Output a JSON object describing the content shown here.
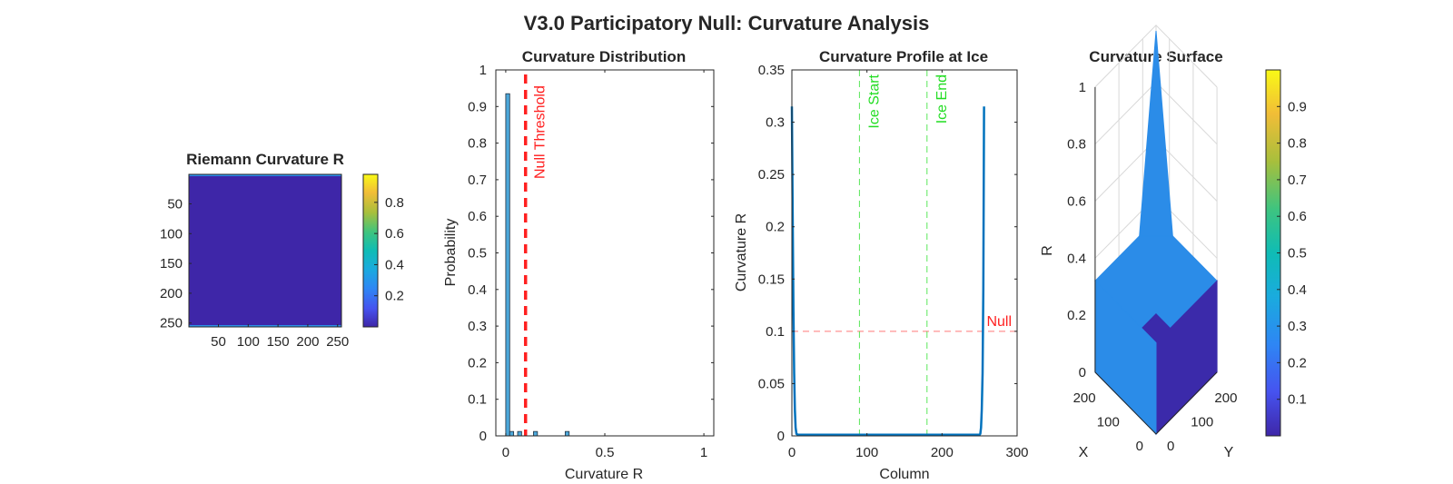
{
  "figure": {
    "title": "V3.0 Participatory Null: Curvature Analysis"
  },
  "colors": {
    "heatmap_fill": "#3e26a8",
    "heatmap_edge": "#2c8fe8",
    "bar_fill": "#4da8da",
    "line": "#0072bd",
    "threshold": "#ff2020",
    "ice": "#22dd22",
    "surface_high": "#2b8ce8",
    "surface_low": "#3b2aaa"
  },
  "chart_data": [
    {
      "type": "heatmap",
      "title": "Riemann Curvature R",
      "x_ticks": [
        "50",
        "100",
        "150",
        "200",
        "250"
      ],
      "y_ticks": [
        "50",
        "100",
        "150",
        "200",
        "250"
      ],
      "xlim": [
        0.5,
        256.5
      ],
      "ylim": [
        0.5,
        256.5
      ],
      "colorbar": {
        "ticks": [
          "0.2",
          "0.4",
          "0.6",
          "0.8"
        ],
        "values": [
          0.2,
          0.4,
          0.6,
          0.8
        ],
        "range": [
          0,
          0.98
        ]
      }
    },
    {
      "type": "bar",
      "title": "Curvature Distribution",
      "xlabel": "Curvature R",
      "ylabel": "Probability",
      "xlim": [
        -0.05,
        1.05
      ],
      "ylim": [
        0,
        1
      ],
      "x_ticks": [
        0,
        0.5,
        1
      ],
      "x_tick_labels": [
        "0",
        "0.5",
        "1"
      ],
      "y_ticks": [
        0,
        0.1,
        0.2,
        0.3,
        0.4,
        0.5,
        0.6,
        0.7,
        0.8,
        0.9,
        1
      ],
      "y_tick_labels": [
        "0",
        "0.1",
        "0.2",
        "0.3",
        "0.4",
        "0.5",
        "0.6",
        "0.7",
        "0.8",
        "0.9",
        "1"
      ],
      "bar_width": 0.02,
      "bars": [
        {
          "x": 0.01,
          "value": 0.935
        },
        {
          "x": 0.03,
          "value": 0.012
        },
        {
          "x": 0.07,
          "value": 0.012
        },
        {
          "x": 0.15,
          "value": 0.012
        },
        {
          "x": 0.31,
          "value": 0.012
        }
      ],
      "threshold": {
        "x": 0.1,
        "label": "Null Threshold"
      }
    },
    {
      "type": "line",
      "title": "Curvature Profile at Ice",
      "xlabel": "Column",
      "ylabel": "Curvature R",
      "xlim": [
        0,
        300
      ],
      "ylim": [
        0,
        0.35
      ],
      "x_ticks": [
        0,
        100,
        200,
        300
      ],
      "x_tick_labels": [
        "0",
        "100",
        "200",
        "300"
      ],
      "y_ticks": [
        0,
        0.05,
        0.1,
        0.15,
        0.2,
        0.25,
        0.3,
        0.35
      ],
      "y_tick_labels": [
        "0",
        "0.05",
        "0.1",
        "0.15",
        "0.2",
        "0.25",
        "0.3",
        "0.35"
      ],
      "x": [
        0,
        1,
        2,
        3,
        4,
        5,
        6,
        8,
        250,
        251,
        252,
        253,
        254,
        255,
        256
      ],
      "y": [
        0.315,
        0.22,
        0.12,
        0.06,
        0.025,
        0.008,
        0.002,
        0.001,
        0.001,
        0.002,
        0.008,
        0.025,
        0.06,
        0.14,
        0.315
      ],
      "null_line": {
        "y": 0.1,
        "label": "Null"
      },
      "ice_lines": [
        {
          "x": 90,
          "label": "Ice Start"
        },
        {
          "x": 180,
          "label": "Ice End"
        }
      ]
    },
    {
      "type": "surface",
      "title": "Curvature Surface",
      "xlabel": "X",
      "ylabel": "Y",
      "zlabel": "R",
      "xlim": [
        0,
        256
      ],
      "ylim": [
        0,
        256
      ],
      "zlim": [
        0,
        1
      ],
      "x_tick_values": [
        0,
        100,
        200
      ],
      "x_tick_labels": [
        "0",
        "100",
        "200"
      ],
      "y_tick_values": [
        0,
        100,
        200
      ],
      "y_tick_labels": [
        "0",
        "100",
        "200"
      ],
      "z_ticks": [
        0,
        0.2,
        0.4,
        0.6,
        0.8,
        1
      ],
      "z_tick_labels": [
        "0",
        "0.2",
        "0.4",
        "0.6",
        "0.8",
        "1"
      ],
      "edge_value": 0.32,
      "interior_value": 0.001,
      "peak_value": 0.98,
      "colorbar": {
        "ticks": [
          "0.1",
          "0.2",
          "0.3",
          "0.4",
          "0.5",
          "0.6",
          "0.7",
          "0.8",
          "0.9"
        ],
        "values": [
          0.1,
          0.2,
          0.3,
          0.4,
          0.5,
          0.6,
          0.7,
          0.8,
          0.9
        ],
        "range": [
          0,
          1
        ]
      }
    }
  ]
}
